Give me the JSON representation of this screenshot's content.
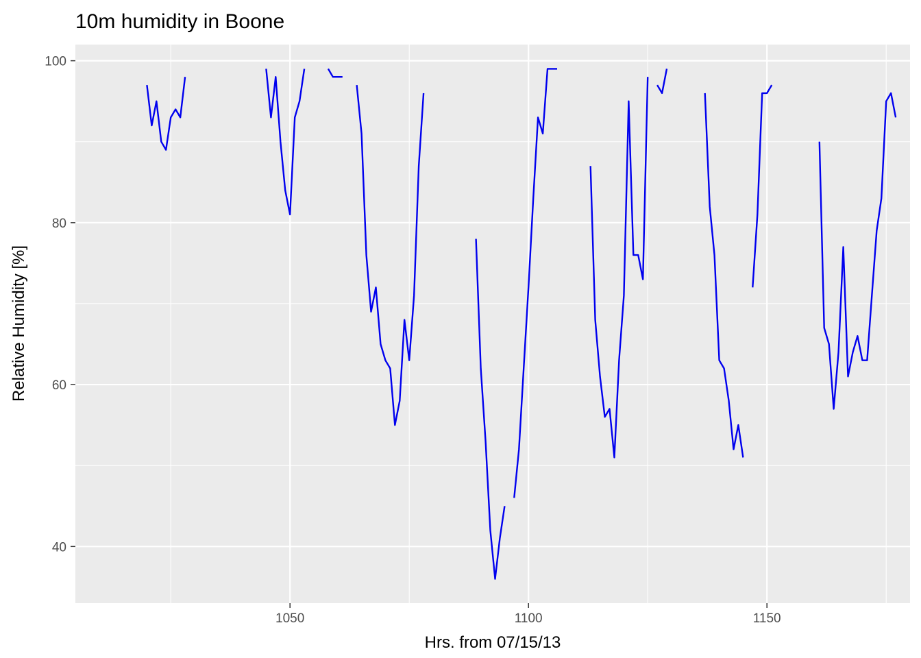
{
  "chart_data": {
    "type": "line",
    "title": "10m humidity in Boone",
    "xlabel": "Hrs. from 07/15/13",
    "ylabel": "Relative Humidity [%]",
    "xlim": [
      1005,
      1180
    ],
    "ylim": [
      33,
      102
    ],
    "x_ticks": [
      1050,
      1100,
      1150
    ],
    "y_ticks": [
      40,
      60,
      80,
      100
    ],
    "x_minor_ticks": [
      1025,
      1075,
      1125,
      1175
    ],
    "y_minor_ticks": [
      50,
      70,
      90
    ],
    "grid": true,
    "legend": "none",
    "colors": {
      "line": "#0000ee",
      "panel_background": "#ebebeb",
      "grid": "#ffffff",
      "tick_label": "#4d4d4d",
      "tick_mark": "#333333"
    },
    "series": [
      {
        "segments": [
          [
            [
              1020,
              97
            ],
            [
              1021,
              92
            ],
            [
              1022,
              95
            ],
            [
              1023,
              90
            ],
            [
              1024,
              89
            ],
            [
              1025,
              93
            ],
            [
              1026,
              94
            ],
            [
              1027,
              93
            ],
            [
              1028,
              98
            ]
          ],
          [
            [
              1045,
              99
            ],
            [
              1046,
              93
            ],
            [
              1047,
              98
            ],
            [
              1048,
              90
            ],
            [
              1049,
              84
            ],
            [
              1050,
              81
            ],
            [
              1051,
              93
            ],
            [
              1052,
              95
            ],
            [
              1053,
              99
            ]
          ],
          [
            [
              1058,
              99
            ],
            [
              1059,
              98
            ],
            [
              1060,
              98
            ],
            [
              1061,
              98
            ]
          ],
          [
            [
              1064,
              97
            ],
            [
              1065,
              91
            ],
            [
              1066,
              76
            ],
            [
              1067,
              69
            ],
            [
              1068,
              72
            ],
            [
              1069,
              65
            ],
            [
              1070,
              63
            ],
            [
              1071,
              62
            ],
            [
              1072,
              55
            ],
            [
              1073,
              58
            ],
            [
              1074,
              68
            ],
            [
              1075,
              63
            ],
            [
              1076,
              71
            ],
            [
              1077,
              87
            ],
            [
              1078,
              96
            ]
          ],
          [
            [
              1089,
              78
            ],
            [
              1090,
              62
            ],
            [
              1091,
              53
            ],
            [
              1092,
              42
            ],
            [
              1093,
              36
            ],
            [
              1094,
              41
            ],
            [
              1095,
              45
            ]
          ],
          [
            [
              1097,
              46
            ],
            [
              1098,
              52
            ],
            [
              1099,
              62
            ],
            [
              1100,
              72
            ],
            [
              1101,
              83
            ],
            [
              1102,
              93
            ],
            [
              1103,
              91
            ],
            [
              1104,
              99
            ],
            [
              1105,
              99
            ],
            [
              1106,
              99
            ]
          ],
          [
            [
              1113,
              87
            ],
            [
              1114,
              68
            ],
            [
              1115,
              61
            ],
            [
              1116,
              56
            ],
            [
              1117,
              57
            ],
            [
              1118,
              51
            ],
            [
              1119,
              63
            ],
            [
              1120,
              71
            ],
            [
              1121,
              95
            ],
            [
              1122,
              76
            ],
            [
              1123,
              76
            ],
            [
              1124,
              73
            ],
            [
              1125,
              98
            ]
          ],
          [
            [
              1127,
              97
            ],
            [
              1128,
              96
            ],
            [
              1129,
              99
            ]
          ],
          [
            [
              1137,
              96
            ],
            [
              1138,
              82
            ],
            [
              1139,
              76
            ],
            [
              1140,
              63
            ],
            [
              1141,
              62
            ],
            [
              1142,
              58
            ],
            [
              1143,
              52
            ],
            [
              1144,
              55
            ],
            [
              1145,
              51
            ]
          ],
          [
            [
              1147,
              72
            ],
            [
              1148,
              81
            ],
            [
              1149,
              96
            ],
            [
              1150,
              96
            ],
            [
              1151,
              97
            ]
          ],
          [
            [
              1161,
              90
            ],
            [
              1162,
              67
            ],
            [
              1163,
              65
            ],
            [
              1164,
              57
            ],
            [
              1165,
              64
            ],
            [
              1166,
              77
            ],
            [
              1167,
              61
            ],
            [
              1168,
              64
            ],
            [
              1169,
              66
            ],
            [
              1170,
              63
            ],
            [
              1171,
              63
            ],
            [
              1172,
              71
            ],
            [
              1173,
              79
            ],
            [
              1174,
              83
            ],
            [
              1175,
              95
            ],
            [
              1176,
              96
            ],
            [
              1177,
              93
            ]
          ]
        ]
      }
    ]
  }
}
